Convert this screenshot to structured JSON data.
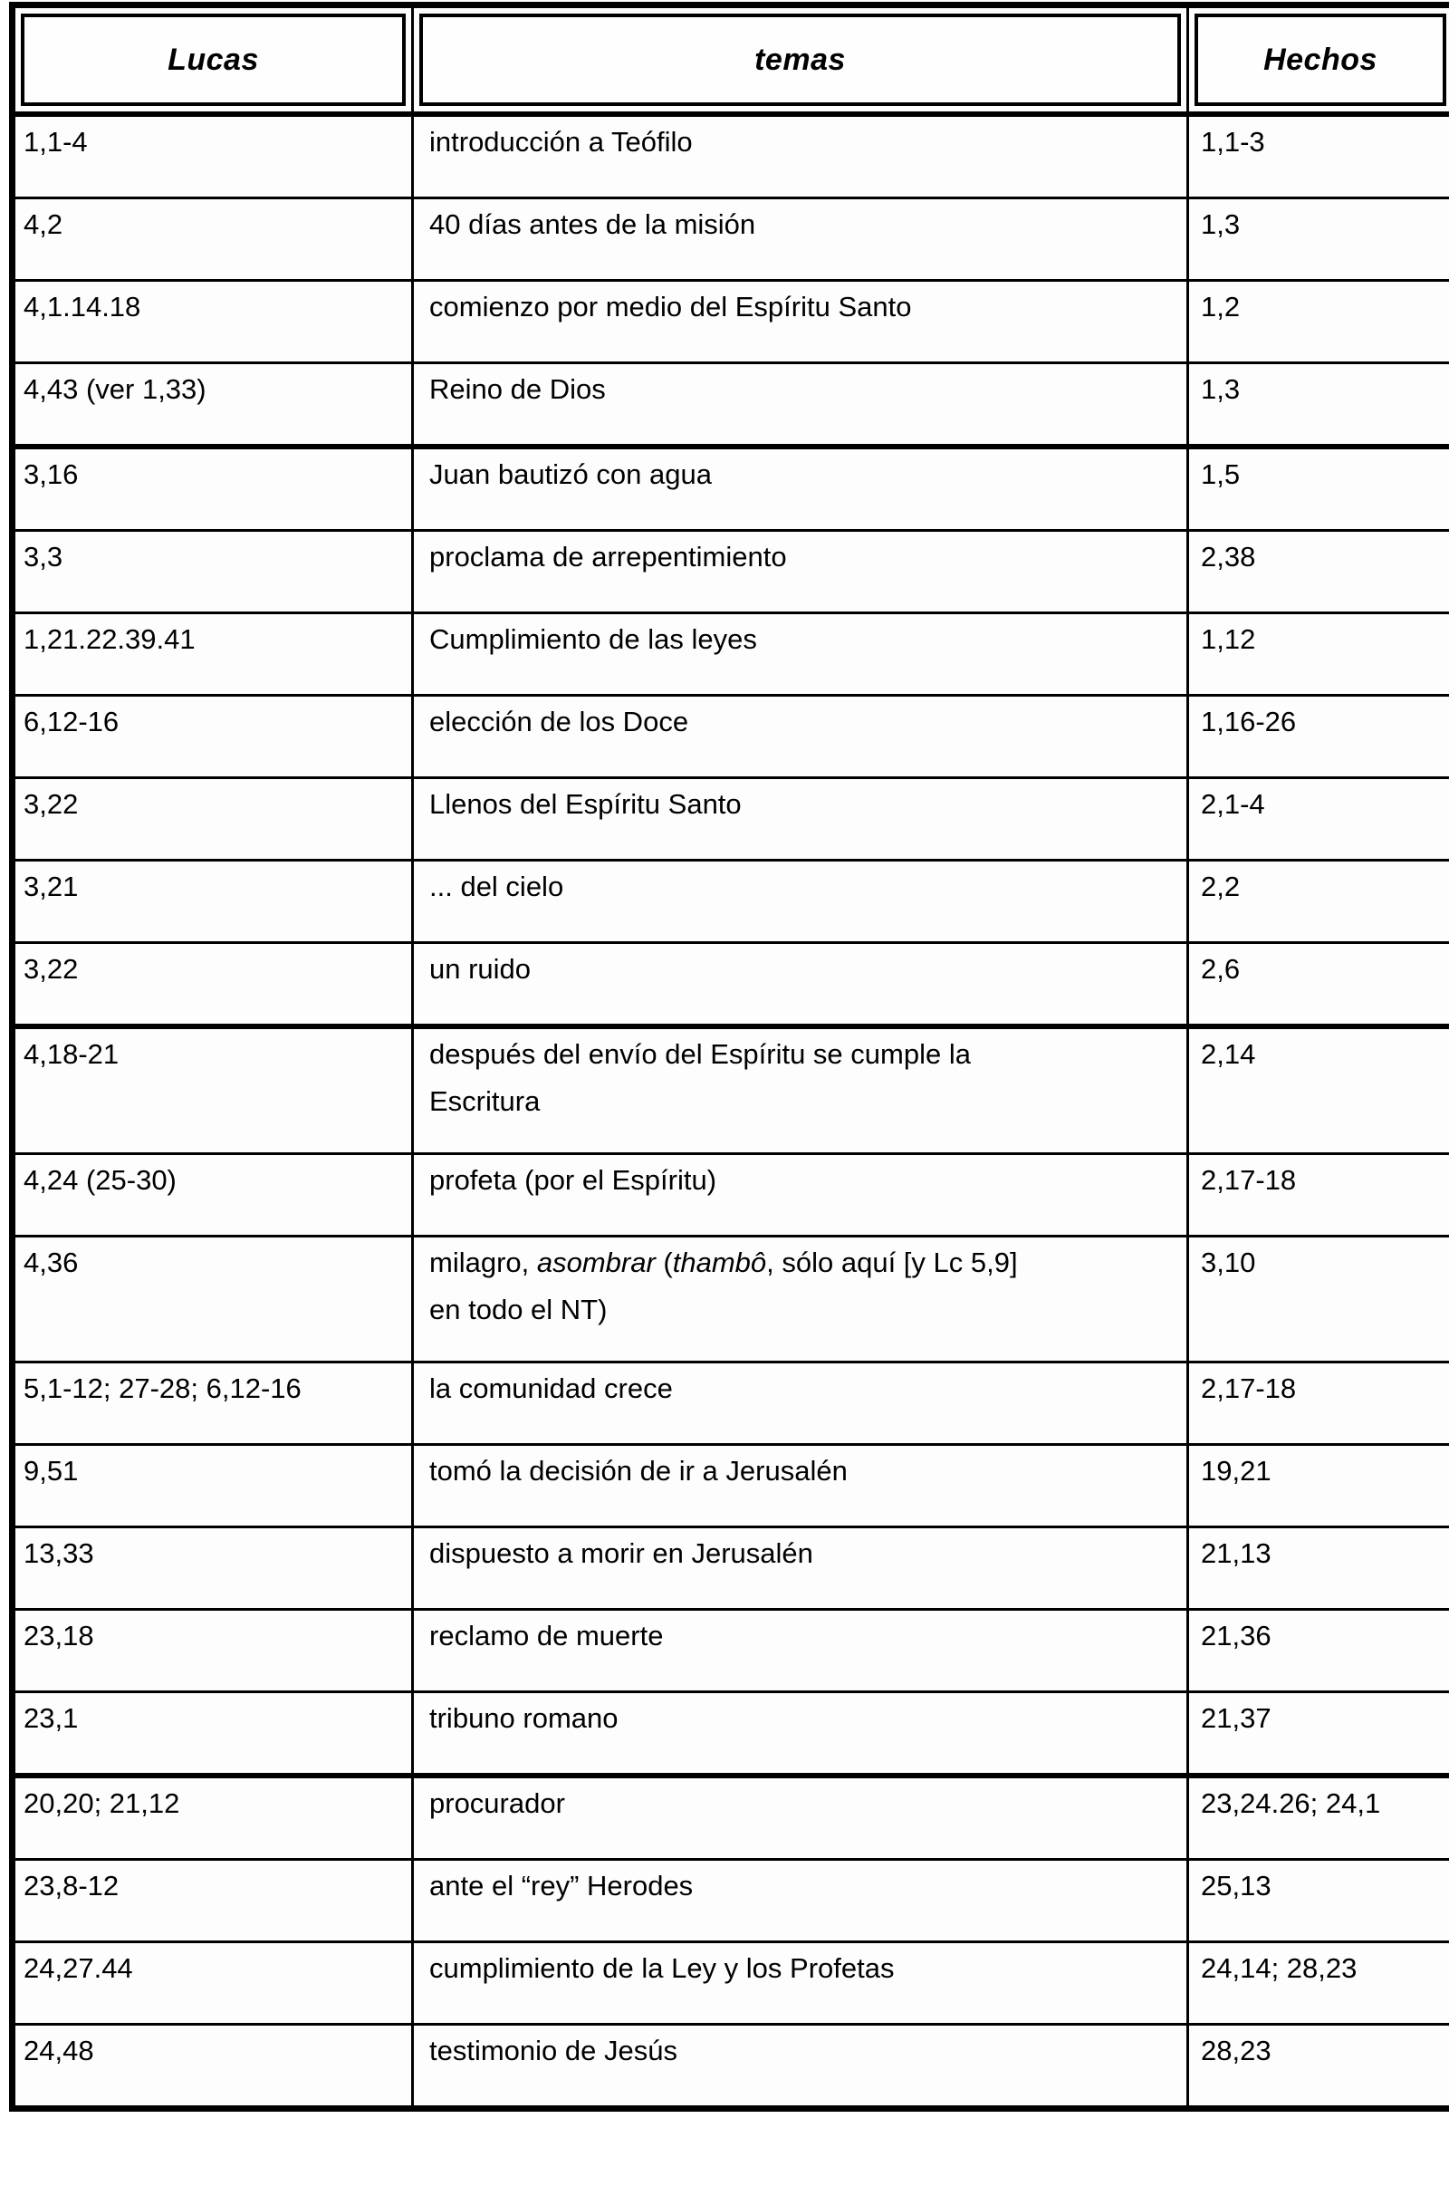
{
  "table": {
    "headers": [
      {
        "label": "Lucas"
      },
      {
        "label": "temas"
      },
      {
        "label": "Hechos"
      }
    ],
    "rows": [
      {
        "lucas": "1,1-4",
        "tema": "introducción a Teófilo",
        "hechos": "1,1-3"
      },
      {
        "lucas": "4,2",
        "tema": "40 días antes de la misión",
        "hechos": "1,3"
      },
      {
        "lucas": "4,1.14.18",
        "tema": "comienzo por medio del Espíritu Santo",
        "hechos": "1,2"
      },
      {
        "lucas": "4,43 (ver 1,33)",
        "tema": "Reino de Dios",
        "hechos": "1,3",
        "thick_bottom": true
      },
      {
        "lucas": "3,16",
        "tema": "Juan bautizó con agua",
        "hechos": "1,5"
      },
      {
        "lucas": "3,3",
        "tema": "proclama de arrepentimiento",
        "hechos": "2,38"
      },
      {
        "lucas": "1,21.22.39.41",
        "tema": "Cumplimiento de las leyes",
        "hechos": "1,12"
      },
      {
        "lucas": "6,12-16",
        "tema": "elección de los Doce",
        "hechos": "1,16-26"
      },
      {
        "lucas": "3,22",
        "tema": "Llenos del Espíritu Santo",
        "hechos": "2,1-4"
      },
      {
        "lucas": "3,21",
        "tema": "... del cielo",
        "hechos": "2,2"
      },
      {
        "lucas": "3,22",
        "tema": "un ruido",
        "hechos": "2,6",
        "thick_bottom": true
      },
      {
        "lucas": "4,18-21",
        "tema_segments": [
          {
            "text": "después del envío del Espíritu se cumple la"
          },
          {
            "break": true
          },
          {
            "text": "Escritura"
          }
        ],
        "hechos": "2,14",
        "tall": true
      },
      {
        "lucas": "4,24 (25-30)",
        "tema": "profeta (por el Espíritu)",
        "hechos": "2,17-18"
      },
      {
        "lucas": "4,36",
        "tema_segments": [
          {
            "text": "milagro, "
          },
          {
            "text": "asombrar",
            "italic": true
          },
          {
            "text": " ("
          },
          {
            "text": "thambô",
            "italic": true
          },
          {
            "text": ", sólo aquí [y Lc 5,9]"
          },
          {
            "break": true
          },
          {
            "text": "en todo el NT)"
          }
        ],
        "hechos": "3,10",
        "tall": true
      },
      {
        "lucas": "5,1-12; 27-28; 6,12-16",
        "tema": "la comunidad crece",
        "hechos": "2,17-18"
      },
      {
        "lucas": "9,51",
        "tema": "tomó la decisión de ir a Jerusalén",
        "hechos": "19,21"
      },
      {
        "lucas": "13,33",
        "tema": "dispuesto a morir en Jerusalén",
        "hechos": "21,13"
      },
      {
        "lucas": "23,18",
        "tema": "reclamo de muerte",
        "hechos": "21,36"
      },
      {
        "lucas": "23,1",
        "tema": "tribuno romano",
        "hechos": "21,37",
        "thick_bottom": true
      },
      {
        "lucas": "20,20; 21,12",
        "tema": "procurador",
        "hechos": "23,24.26; 24,1"
      },
      {
        "lucas": "23,8-12",
        "tema": "ante el “rey” Herodes",
        "hechos": "25,13"
      },
      {
        "lucas": "24,27.44",
        "tema": "cumplimiento de la Ley y los Profetas",
        "hechos": "24,14; 28,23"
      },
      {
        "lucas": "24,48",
        "tema": "testimonio de Jesús",
        "hechos": "28,23"
      }
    ]
  },
  "colors": {
    "border": "#000000",
    "background": "#ffffff",
    "text": "#000000"
  }
}
